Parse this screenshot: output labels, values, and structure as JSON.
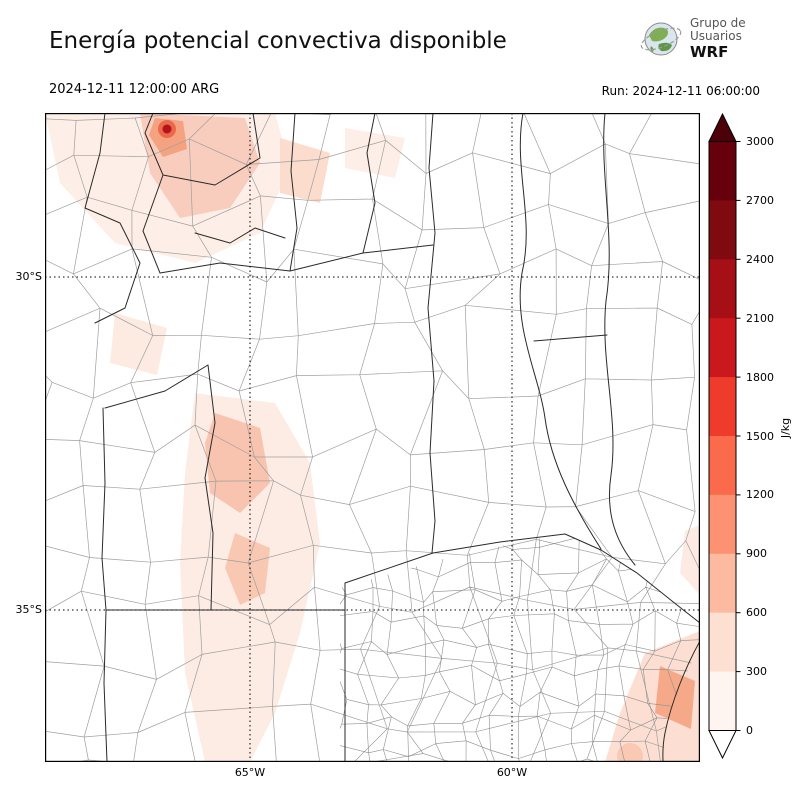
{
  "header": {
    "title": "Energía potencial convectiva disponible",
    "logo": {
      "line1": "Grupo de",
      "line2": "Usuarios",
      "line3": "WRF"
    }
  },
  "subheader": {
    "valid_time": "2024-12-11 12:00:00 ARG",
    "run_time": "Run: 2024-12-11 06:00:00"
  },
  "map": {
    "lat_labels": [
      "30°S",
      "35°S"
    ],
    "lon_labels": [
      "65°W",
      "60°W"
    ]
  },
  "colorbar": {
    "label": "J/kg",
    "ticks_top_to_bottom": [
      "3000",
      "2700",
      "2400",
      "2100",
      "1800",
      "1500",
      "1200",
      "900",
      "600",
      "300",
      "0"
    ],
    "segment_colors_top_to_bottom": [
      "#67000d",
      "#7f0a10",
      "#a50f15",
      "#cb181d",
      "#ef3b2c",
      "#fb6a4a",
      "#fc9272",
      "#fcbba1",
      "#fee0d2",
      "#fff5f0"
    ],
    "over_arrow_color": "#4c0009",
    "under_arrow_color": "#ffffff"
  },
  "chart_data": {
    "type": "heatmap",
    "title": "Energía potencial convectiva disponible",
    "variable": "CAPE",
    "units": "J/kg",
    "valid_time": "2024-12-11 12:00:00 ARG",
    "run_time": "2024-12-11 06:00:00",
    "levels": [
      0,
      300,
      600,
      900,
      1200,
      1500,
      1800,
      2100,
      2400,
      2700,
      3000
    ],
    "colormap": "Reds (white to dark red), arrow extensions at both ends",
    "lat_ticks": [
      "30°S",
      "35°S"
    ],
    "lon_ticks": [
      "65°W",
      "60°W"
    ],
    "region": "Central-northern Argentina (approx. 69°W–56°W, 27.5°S–37.3°S)",
    "notes": "Mostly near-zero CAPE; faint 0–600 J/kg patches over the northwest (with a small ~900–1500 J/kg maximum at far NW), a pale swath through the central-west (San Luis / western Córdoba / La Pampa), and 0–600 J/kg patches near the SE Buenos Aires coast and adjacent Atlantic."
  }
}
